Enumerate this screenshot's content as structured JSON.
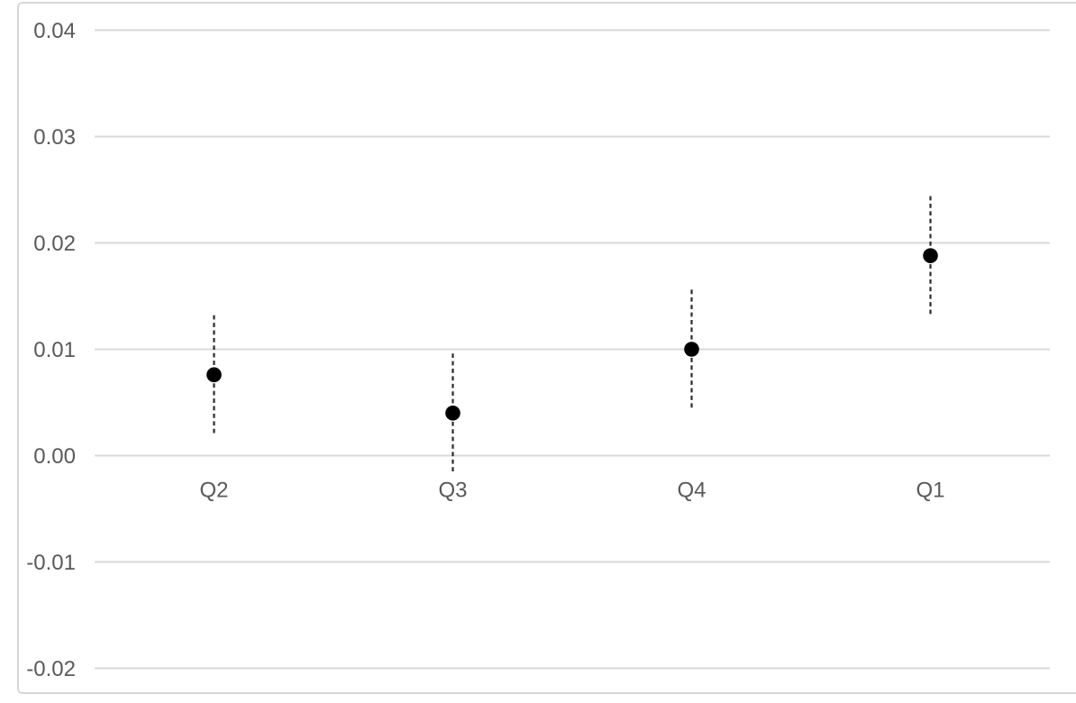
{
  "chart_data": {
    "type": "scatter",
    "subtype": "dot-with-confidence-interval",
    "title": "",
    "xlabel": "",
    "ylabel": "",
    "grid": true,
    "legend": false,
    "categories": [
      "Q2",
      "Q3",
      "Q4",
      "Q1"
    ],
    "values": [
      0.0076,
      0.004,
      0.01,
      0.0188
    ],
    "ci_low": [
      0.002,
      -0.0016,
      0.0044,
      0.0132
    ],
    "ci_high": [
      0.0132,
      0.0096,
      0.0156,
      0.0244
    ],
    "yticks": [
      0.04,
      0.03,
      0.02,
      0.01,
      0,
      -0.01,
      -0.02
    ],
    "ytick_labels": [
      "0.04",
      "0.03",
      "0.02",
      "0.01",
      "0.00",
      "-0.01",
      "-0.02"
    ],
    "ylim": [
      -0.02,
      0.04
    ],
    "colors": {
      "dot": "#000000",
      "ci_line": "#2b2b2b",
      "gridline": "#d9d9d9",
      "tick_label": "#595959",
      "card_border": "#d6d6d6",
      "background": "#ffffff"
    }
  }
}
